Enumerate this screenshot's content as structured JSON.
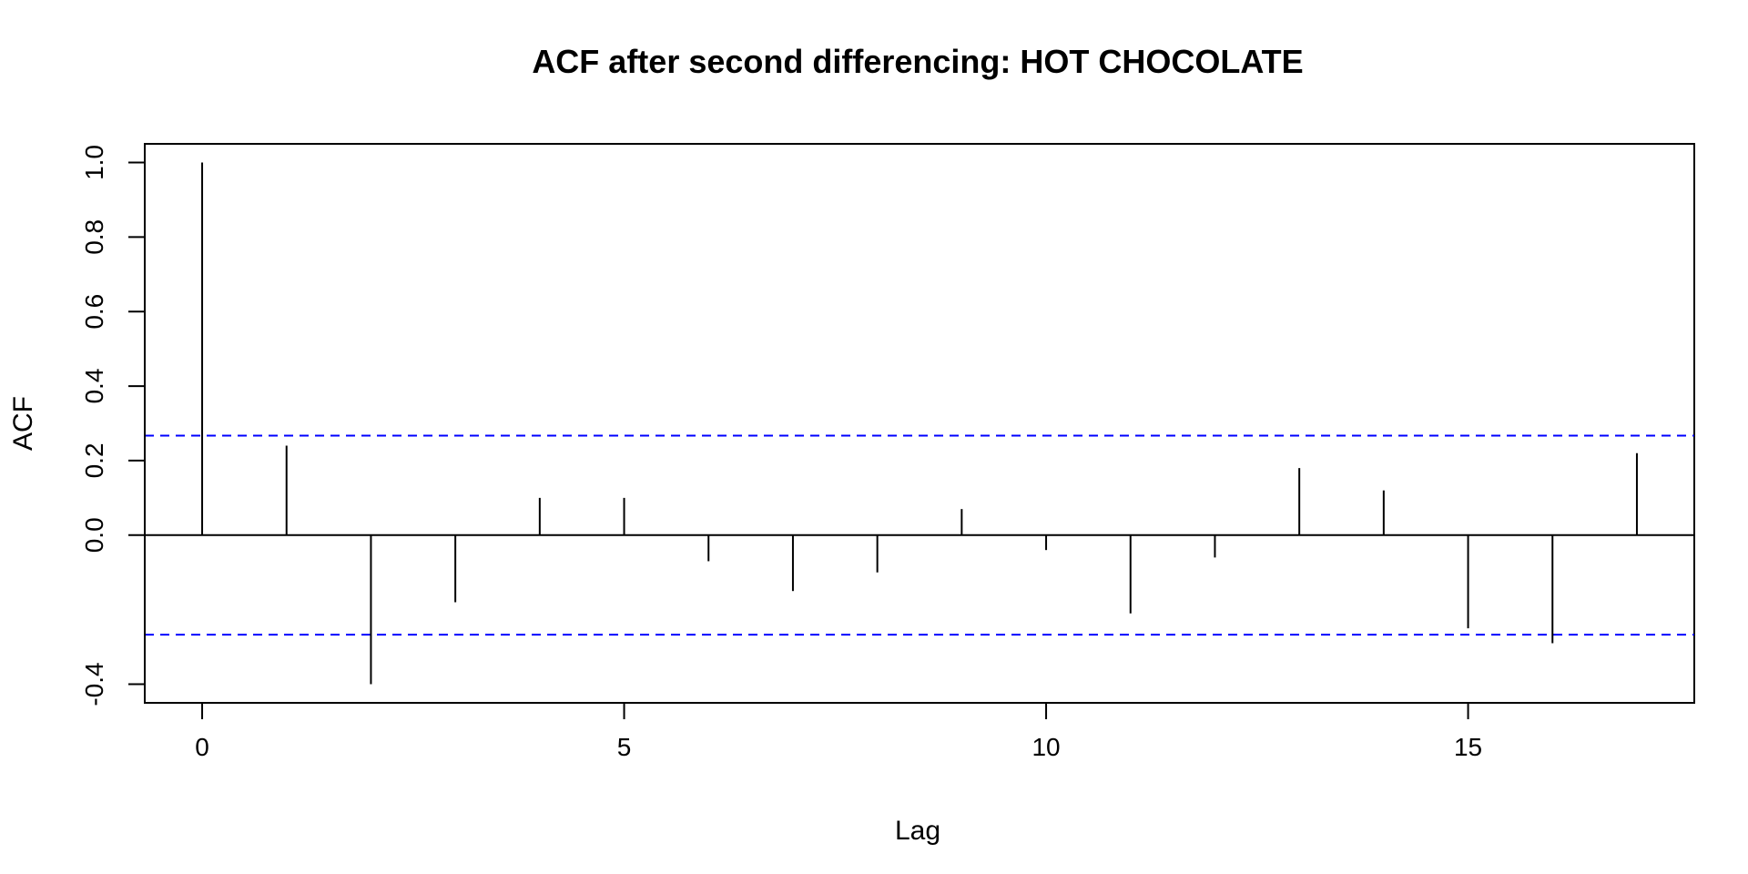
{
  "chart_data": {
    "type": "bar",
    "subtype": "acf",
    "title": "ACF after second differencing: HOT CHOCOLATE",
    "xlabel": "Lag",
    "ylabel": "ACF",
    "x": [
      0,
      1,
      2,
      3,
      4,
      5,
      6,
      7,
      8,
      9,
      10,
      11,
      12,
      13,
      14,
      15,
      16,
      17
    ],
    "values": [
      1.0,
      0.24,
      -0.4,
      -0.18,
      0.1,
      0.1,
      -0.07,
      -0.15,
      -0.1,
      0.07,
      -0.04,
      -0.21,
      -0.06,
      0.18,
      0.12,
      -0.25,
      -0.29,
      0.22
    ],
    "confidence_bound": 0.267,
    "xlim": [
      -0.68,
      17.68
    ],
    "ylim": [
      -0.45,
      1.05
    ],
    "xticks": [
      0,
      5,
      10,
      15
    ],
    "xtick_labels": [
      "0",
      "5",
      "10",
      "15"
    ],
    "yticks": [
      -0.4,
      0.0,
      0.2,
      0.4,
      0.6,
      0.8,
      1.0
    ],
    "ytick_labels": [
      "-0.4",
      "0.0",
      "0.2",
      "0.4",
      "0.6",
      "0.8",
      "1.0"
    ],
    "colors": {
      "bars": "#000000",
      "confidence": "#0000ff",
      "axis": "#000000"
    }
  }
}
